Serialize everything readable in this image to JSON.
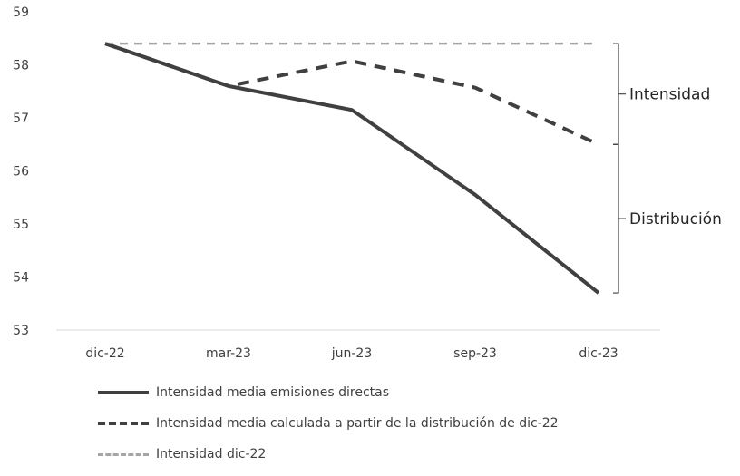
{
  "chart_data": {
    "type": "line",
    "title": "",
    "xlabel": "",
    "ylabel": "",
    "categories": [
      "dic-22",
      "mar-23",
      "jun-23",
      "sep-23",
      "dic-23"
    ],
    "ylim": [
      53,
      59
    ],
    "yticks": [
      53,
      54,
      55,
      56,
      57,
      58,
      59
    ],
    "grid": false,
    "legend_position": "bottom",
    "series": [
      {
        "name": "Intensidad media emisiones directas",
        "values": [
          58.4,
          57.6,
          57.15,
          55.55,
          53.7
        ],
        "color": "#404040",
        "style": "solid"
      },
      {
        "name": "Intensidad media calculada a partir de la distribución de dic-22",
        "values": [
          58.4,
          57.6,
          58.07,
          57.57,
          56.5
        ],
        "color": "#404040",
        "style": "dashed"
      },
      {
        "name": "Intensidad dic-22",
        "values": [
          58.4,
          58.4,
          58.4,
          58.4,
          58.4
        ],
        "color": "#a6a6a6",
        "style": "dashed"
      }
    ],
    "annotations": [
      {
        "text": "Intensidad",
        "from": 58.4,
        "to": 56.5
      },
      {
        "text": "Distribución",
        "from": 56.5,
        "to": 53.7
      }
    ]
  }
}
